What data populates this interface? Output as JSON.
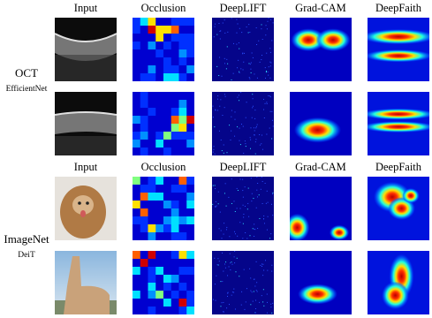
{
  "figure": {
    "panels": [
      {
        "headers": [
          "Input",
          "Occlusion",
          "DeepLIFT",
          "Grad-CAM",
          "DeepFaith"
        ],
        "dataset": "OCT",
        "model": "EfficientNet"
      },
      {
        "headers": [
          "Input",
          "Occlusion",
          "DeepLIFT",
          "Grad-CAM",
          "DeepFaith"
        ],
        "dataset": "ImageNet",
        "model": "DeiT"
      }
    ]
  }
}
